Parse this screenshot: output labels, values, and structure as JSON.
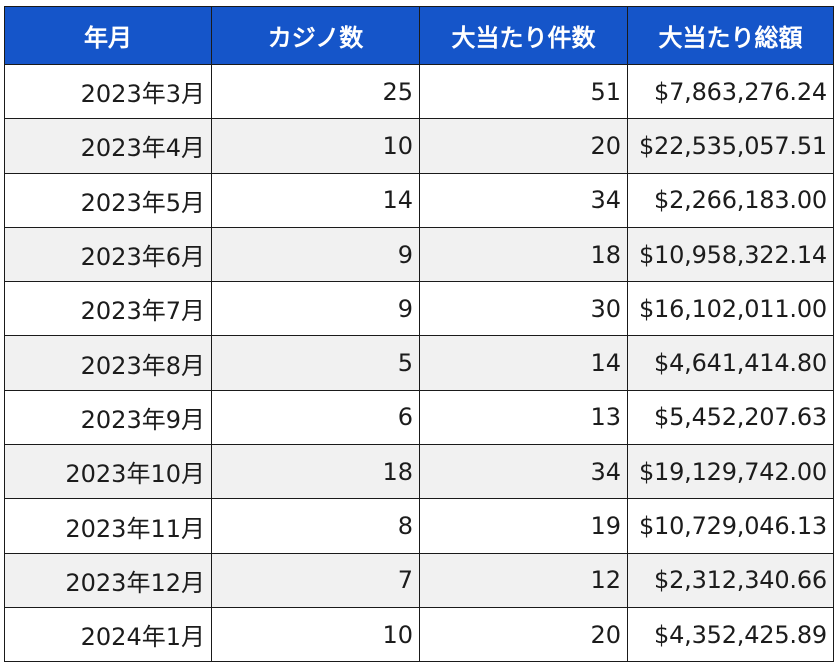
{
  "table": {
    "headers": [
      "年月",
      "カジノ数",
      "大当たり件数",
      "大当たり総額"
    ],
    "rows": [
      {
        "month": "2023年3月",
        "casinos": "25",
        "jackpots": "51",
        "total": "$7,863,276.24"
      },
      {
        "month": "2023年4月",
        "casinos": "10",
        "jackpots": "20",
        "total": "$22,535,057.51"
      },
      {
        "month": "2023年5月",
        "casinos": "14",
        "jackpots": "34",
        "total": "$2,266,183.00"
      },
      {
        "month": "2023年6月",
        "casinos": "9",
        "jackpots": "18",
        "total": "$10,958,322.14"
      },
      {
        "month": "2023年7月",
        "casinos": "9",
        "jackpots": "30",
        "total": "$16,102,011.00"
      },
      {
        "month": "2023年8月",
        "casinos": "5",
        "jackpots": "14",
        "total": "$4,641,414.80"
      },
      {
        "month": "2023年9月",
        "casinos": "6",
        "jackpots": "13",
        "total": "$5,452,207.63"
      },
      {
        "month": "2023年10月",
        "casinos": "18",
        "jackpots": "34",
        "total": "$19,129,742.00"
      },
      {
        "month": "2023年11月",
        "casinos": "8",
        "jackpots": "19",
        "total": "$10,729,046.13"
      },
      {
        "month": "2023年12月",
        "casinos": "7",
        "jackpots": "12",
        "total": "$2,312,340.66"
      },
      {
        "month": "2024年1月",
        "casinos": "10",
        "jackpots": "20",
        "total": "$4,352,425.89"
      }
    ]
  },
  "colors": {
    "header_bg": "#1555c9",
    "header_text": "#ffffff",
    "row_alt_bg": "#f1f1f1",
    "border": "#1a1a1a"
  }
}
